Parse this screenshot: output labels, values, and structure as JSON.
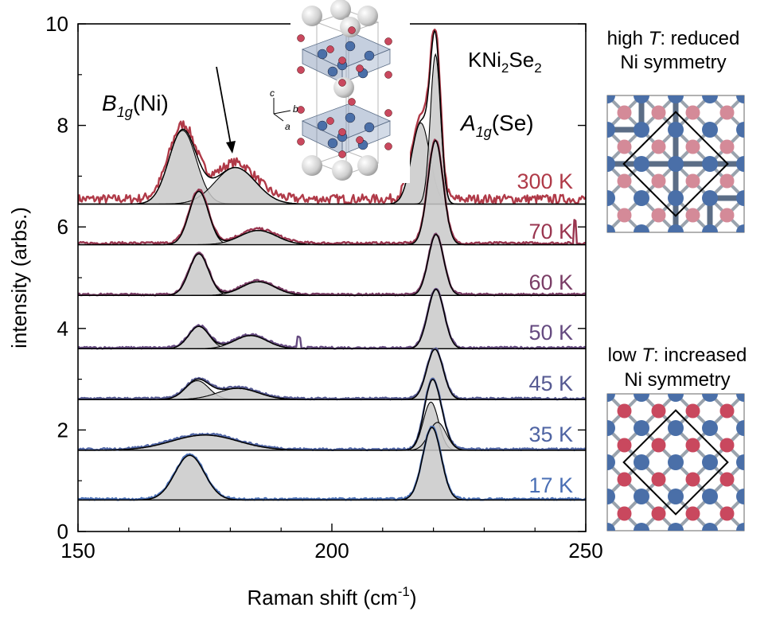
{
  "chart_data": {
    "type": "line",
    "xlabel": "Raman shift (cm",
    "xlabel_sup": "-1",
    "xlabel_close": ")",
    "ylabel": "intensity (arbs.)",
    "xlim": [
      150,
      250
    ],
    "ylim": [
      0,
      10
    ],
    "xticks": [
      150,
      200,
      250
    ],
    "yticks": [
      0,
      2,
      4,
      6,
      8,
      10
    ],
    "material": {
      "base": "KNi",
      "sub1": "2",
      "mid": "Se",
      "sub2": "2"
    },
    "b1g_label": {
      "main": "B",
      "sub": "1g",
      "rest": "(Ni)"
    },
    "a1g_label": {
      "main": "A",
      "sub": "1g",
      "rest": "(Se)"
    },
    "series": [
      {
        "name": "300 K",
        "color": "#b03a48",
        "baseline": 6.45,
        "noise": 0.18,
        "bg": 0.1,
        "peaks": [
          {
            "center": 170.6,
            "amp": 1.45,
            "width": 2.7
          },
          {
            "center": 181.0,
            "amp": 0.72,
            "width": 4.0
          },
          {
            "center": 217.5,
            "amp": 1.6,
            "width": 1.8
          },
          {
            "center": 220.4,
            "amp": 2.95,
            "width": 1.0
          }
        ]
      },
      {
        "name": "70 K",
        "color": "#9a3650",
        "baseline": 5.65,
        "noise": 0.05,
        "bg": 0.03,
        "peaks": [
          {
            "center": 173.8,
            "amp": 1.05,
            "width": 1.9
          },
          {
            "center": 185.5,
            "amp": 0.28,
            "width": 3.6
          },
          {
            "center": 220.4,
            "amp": 2.05,
            "width": 1.5
          }
        ]
      },
      {
        "name": "60 K",
        "color": "#7a3d66",
        "baseline": 4.65,
        "noise": 0.04,
        "bg": 0.02,
        "peaks": [
          {
            "center": 173.8,
            "amp": 0.82,
            "width": 1.9
          },
          {
            "center": 185.5,
            "amp": 0.27,
            "width": 3.3
          },
          {
            "center": 220.5,
            "amp": 1.2,
            "width": 1.5
          }
        ]
      },
      {
        "name": "50 K",
        "color": "#654a80",
        "baseline": 3.6,
        "noise": 0.04,
        "bg": 0.02,
        "peaks": [
          {
            "center": 173.8,
            "amp": 0.44,
            "width": 2.0
          },
          {
            "center": 184.0,
            "amp": 0.26,
            "width": 3.2
          },
          {
            "center": 220.5,
            "amp": 1.17,
            "width": 1.6
          }
        ]
      },
      {
        "name": "45 K",
        "color": "#565a92",
        "baseline": 2.6,
        "noise": 0.04,
        "bg": 0.02,
        "peaks": [
          {
            "center": 173.5,
            "amp": 0.37,
            "width": 2.3
          },
          {
            "center": 181.5,
            "amp": 0.22,
            "width": 4.0
          },
          {
            "center": 220.3,
            "amp": 0.99,
            "width": 1.6
          }
        ]
      },
      {
        "name": "35 K",
        "color": "#4f64a3",
        "baseline": 1.6,
        "noise": 0.04,
        "bg": 0.02,
        "peaks": [
          {
            "center": 175.0,
            "amp": 0.3,
            "width": 6.5
          },
          {
            "center": 219.5,
            "amp": 0.95,
            "width": 1.5
          },
          {
            "center": 220.8,
            "amp": 0.55,
            "width": 1.7
          }
        ]
      },
      {
        "name": "17 K",
        "color": "#4a6fb5",
        "baseline": 0.62,
        "noise": 0.04,
        "bg": 0.02,
        "peaks": [
          {
            "center": 172.0,
            "amp": 0.88,
            "width": 2.9
          },
          {
            "center": 219.7,
            "amp": 1.43,
            "width": 1.8
          }
        ]
      }
    ],
    "legend": "labels placed on curves"
  },
  "panels": {
    "high_T": {
      "line1_pre": "high ",
      "line1_T": "T",
      "line1_post": ": reduced",
      "line2": "Ni symmetry"
    },
    "low_T": {
      "line1_pre": "low ",
      "line1_T": "T",
      "line1_post": ": increased",
      "line2": "Ni symmetry"
    }
  },
  "crystal_axes": {
    "c": "c",
    "b": "b",
    "a": "a"
  },
  "colors": {
    "fill": "#c9c9c9",
    "fit": "#000000",
    "ni_atom": "#4a6fa8",
    "se_atom": "#c9485e",
    "bond": "#5b6d86",
    "k_atom": "#e0e0e0"
  }
}
